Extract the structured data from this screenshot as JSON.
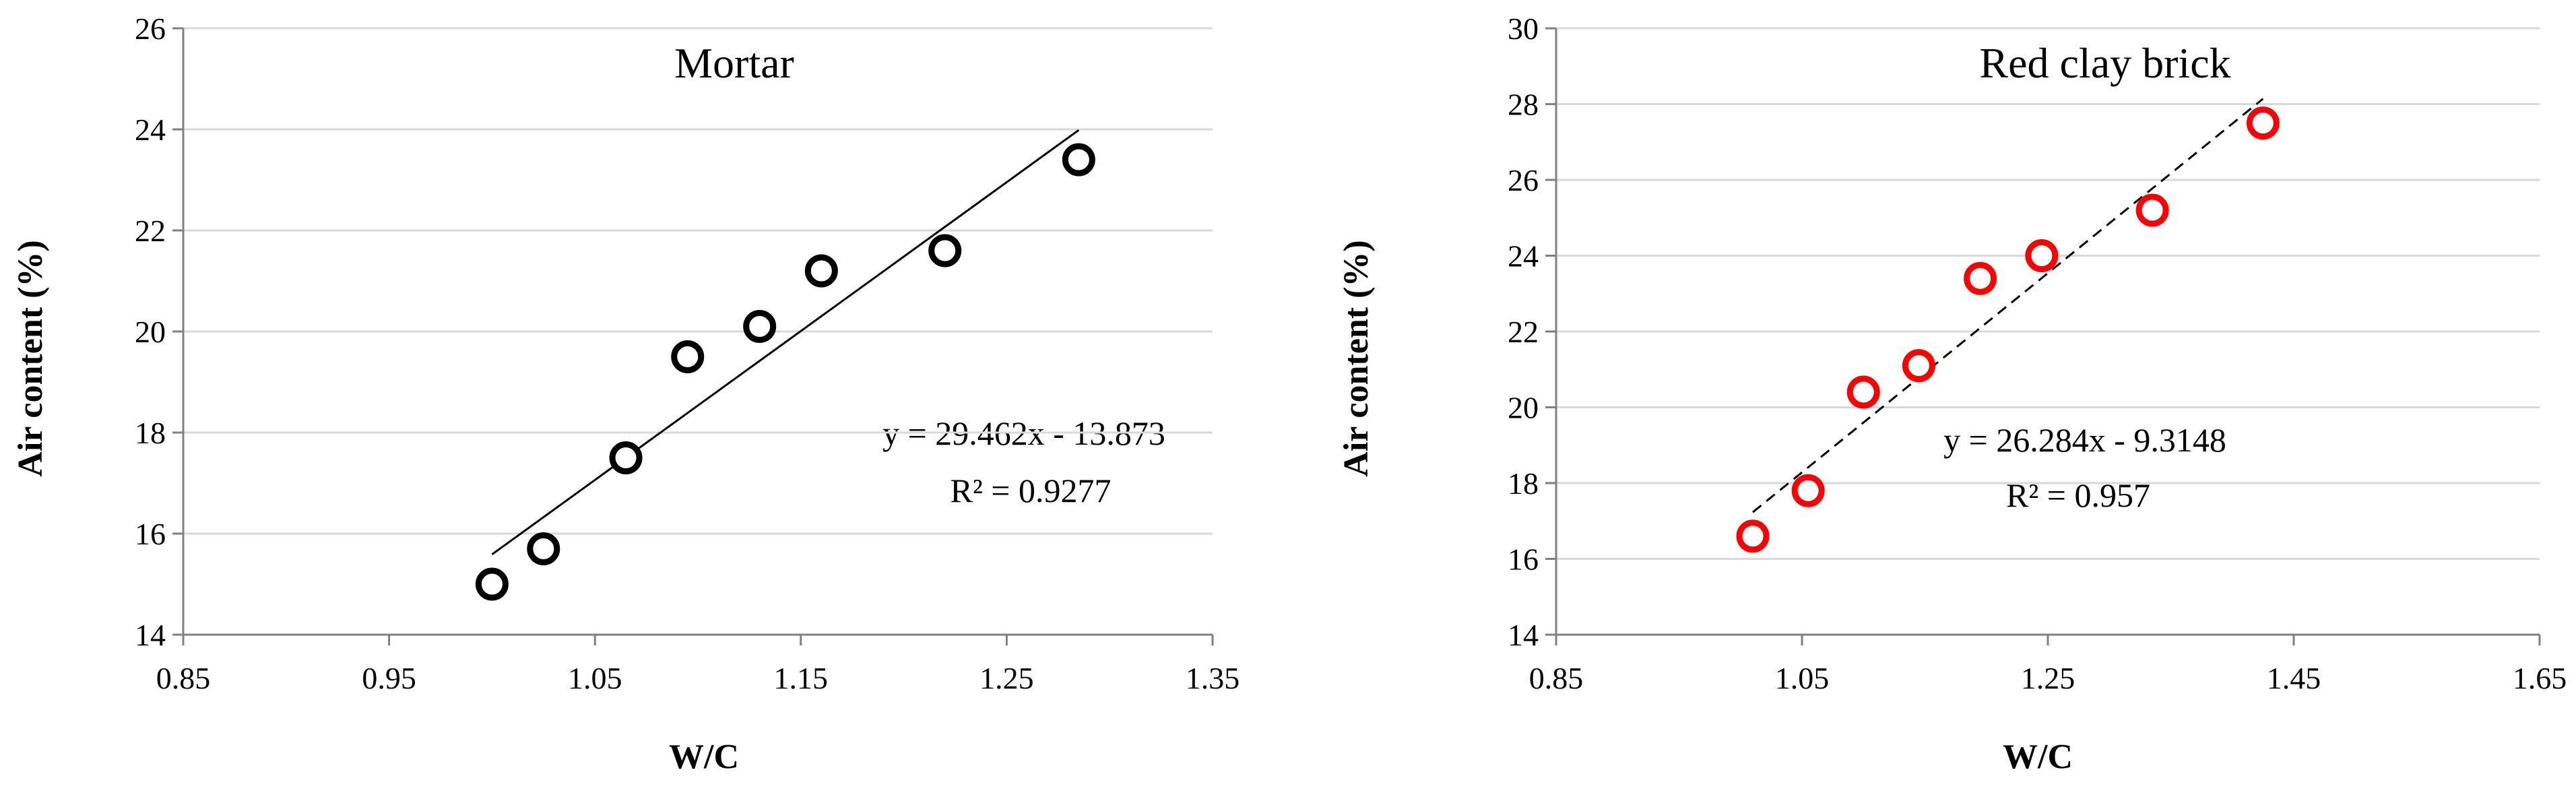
{
  "chart_data": [
    {
      "type": "scatter",
      "title": "Mortar",
      "xlabel": "W/C",
      "ylabel": "Air content (%)",
      "xlim": [
        0.85,
        1.35
      ],
      "ylim": [
        14,
        26
      ],
      "x_ticks": [
        0.85,
        0.95,
        1.05,
        1.15,
        1.25,
        1.35
      ],
      "x_tick_labels": [
        "0.85",
        "0.95",
        "1.05",
        "1.15",
        "1.25",
        "1.35"
      ],
      "y_ticks": [
        14,
        16,
        18,
        20,
        22,
        24,
        26
      ],
      "y_tick_labels": [
        "14",
        "16",
        "18",
        "20",
        "22",
        "24",
        "26"
      ],
      "grid": "horizontal",
      "marker_color": "#000000",
      "series": [
        {
          "x": [
            1.0,
            1.025,
            1.065,
            1.095,
            1.13,
            1.16,
            1.22,
            1.285
          ],
          "y": [
            15.0,
            15.7,
            17.5,
            19.5,
            20.1,
            21.2,
            21.6,
            23.4
          ]
        }
      ],
      "trendline": {
        "slope": 29.462,
        "intercept": -13.873,
        "x_range": [
          1.0,
          1.285
        ],
        "style": "solid",
        "color": "#000000"
      },
      "annotations": [
        "y = 29.462x - 13.873",
        "R² = 0.9277"
      ]
    },
    {
      "type": "scatter",
      "title": "Red clay brick",
      "xlabel": "W/C",
      "ylabel": "Air content (%)",
      "xlim": [
        0.85,
        1.65
      ],
      "ylim": [
        14,
        30
      ],
      "x_ticks": [
        0.85,
        1.05,
        1.25,
        1.45,
        1.65
      ],
      "x_tick_labels": [
        "0.85",
        "1.05",
        "1.25",
        "1.45",
        "1.65"
      ],
      "y_ticks": [
        14,
        16,
        18,
        20,
        22,
        24,
        26,
        28,
        30
      ],
      "y_tick_labels": [
        "14",
        "16",
        "18",
        "20",
        "22",
        "24",
        "26",
        "28",
        "30"
      ],
      "grid": "horizontal",
      "marker_color": "#ff0000",
      "series": [
        {
          "x": [
            1.01,
            1.055,
            1.1,
            1.145,
            1.195,
            1.245,
            1.335,
            1.425
          ],
          "y": [
            16.6,
            17.8,
            20.4,
            21.1,
            23.4,
            24.0,
            25.2,
            27.5
          ]
        }
      ],
      "trendline": {
        "slope": 26.284,
        "intercept": -9.3148,
        "x_range": [
          1.01,
          1.425
        ],
        "style": "dashed",
        "color": "#000000"
      },
      "annotations": [
        "y = 26.284x - 9.3148",
        "R² = 0.957"
      ]
    }
  ]
}
